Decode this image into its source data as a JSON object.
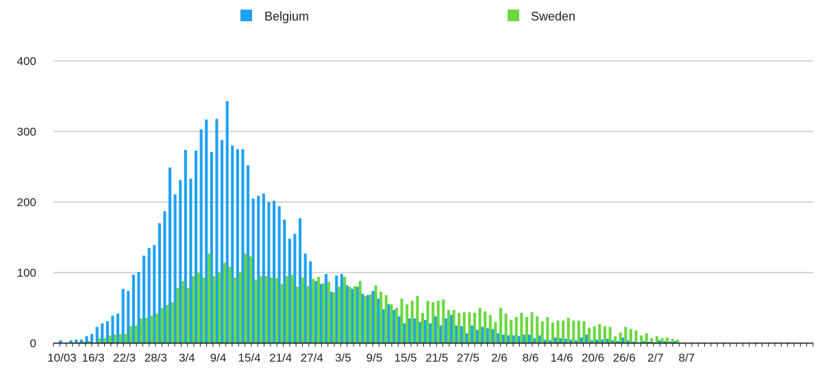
{
  "chart_data": {
    "type": "bar",
    "ylim": [
      0,
      400
    ],
    "yticks": [
      0,
      100,
      200,
      300,
      400
    ],
    "grid": true,
    "legend_position": "top",
    "x_tick_labels": [
      "10/03",
      "16/3",
      "22/3",
      "28/3",
      "3/4",
      "9/4",
      "15/4",
      "21/4",
      "27/4",
      "3/5",
      "9/5",
      "15/5",
      "21/5",
      "27/5",
      "2/6",
      "8/6",
      "14/6",
      "20/6",
      "26/6",
      "2/7",
      "8/7"
    ],
    "x_tick_every_days": 6,
    "series": [
      {
        "name": "Belgium",
        "color": "#1ea1f2",
        "values": [
          4,
          0,
          4,
          5,
          5,
          10,
          13,
          23,
          28,
          31,
          39,
          42,
          77,
          74,
          97,
          101,
          124,
          135,
          139,
          170,
          187,
          249,
          211,
          231,
          274,
          233,
          273,
          303,
          317,
          271,
          318,
          288,
          343,
          280,
          275,
          275,
          252,
          205,
          209,
          212,
          200,
          202,
          194,
          175,
          148,
          155,
          177,
          127,
          116,
          88,
          84,
          98,
          73,
          96,
          98,
          82,
          77,
          80,
          70,
          68,
          74,
          63,
          48,
          55,
          47,
          38,
          28,
          35,
          35,
          30,
          33,
          28,
          38,
          25,
          35,
          40,
          25,
          24,
          14,
          25,
          19,
          23,
          21,
          20,
          14,
          12,
          11,
          11,
          10,
          12,
          12,
          7,
          11,
          5,
          4,
          8,
          7,
          6,
          5,
          4,
          8,
          12,
          4,
          5,
          5,
          6,
          4,
          3,
          8,
          4,
          2,
          1,
          3,
          2,
          1,
          4,
          3,
          2,
          3
        ]
      },
      {
        "name": "Sweden",
        "color": "#6bd840",
        "values": [
          0,
          0,
          0,
          1,
          2,
          3,
          0,
          7,
          7,
          11,
          12,
          13,
          13,
          24,
          25,
          35,
          36,
          39,
          42,
          50,
          54,
          58,
          78,
          88,
          78,
          95,
          100,
          93,
          127,
          95,
          100,
          114,
          108,
          93,
          101,
          127,
          123,
          90,
          95,
          95,
          93,
          92,
          84,
          95,
          97,
          80,
          93,
          81,
          91,
          94,
          85,
          87,
          72,
          80,
          94,
          80,
          81,
          88,
          67,
          69,
          82,
          73,
          68,
          55,
          50,
          63,
          55,
          60,
          67,
          43,
          60,
          58,
          60,
          62,
          47,
          47,
          43,
          44,
          44,
          43,
          50,
          45,
          40,
          30,
          50,
          42,
          33,
          37,
          43,
          37,
          44,
          38,
          31,
          37,
          29,
          32,
          32,
          36,
          32,
          32,
          31,
          22,
          24,
          27,
          24,
          23,
          10,
          15,
          23,
          20,
          18,
          11,
          14,
          7,
          10,
          7,
          8,
          6,
          5
        ]
      }
    ]
  }
}
